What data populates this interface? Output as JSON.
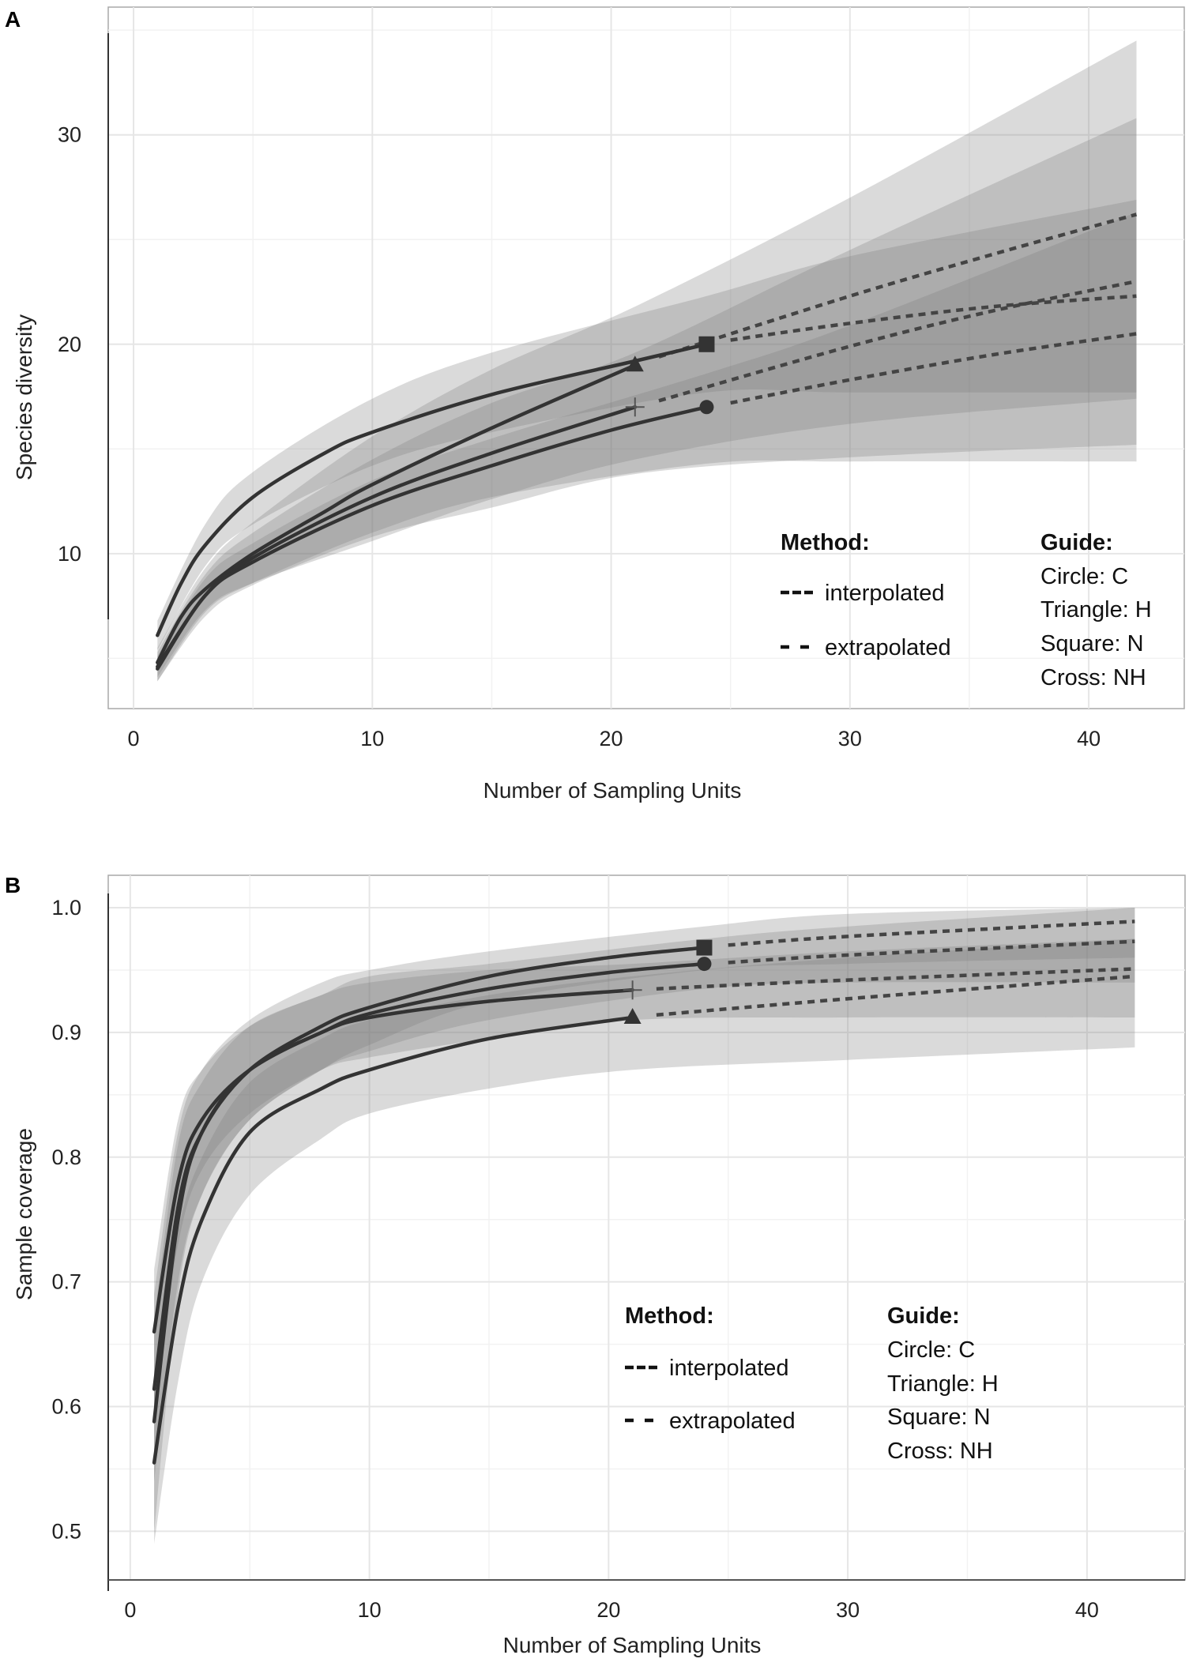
{
  "chart_data": [
    {
      "type": "line",
      "title": "A",
      "xlabel": "Number of Sampling Units",
      "ylabel": "Species diversity",
      "xlim": [
        -1.06,
        44.0
      ],
      "ylim": [
        2.6,
        36.1
      ],
      "xticks": [
        0,
        10,
        20,
        30,
        40
      ],
      "xtick_labels": [
        "0",
        "10",
        "20",
        "30",
        "40"
      ],
      "yticks": [
        10,
        20,
        30
      ],
      "ytick_labels": [
        "10",
        "20",
        "30"
      ],
      "minor_xticks": [
        5,
        15,
        25,
        35
      ],
      "minor_yticks": [
        5,
        15,
        25,
        35
      ],
      "grid": true,
      "legend": {
        "placement": "bottom-right",
        "method_title": "Method:",
        "interpolated": "interpolated",
        "extrapolated": "extrapolated",
        "guide_title": "Guide:",
        "guide_items": [
          "Circle: C",
          "Triangle: H",
          "Square: N",
          "Cross: NH"
        ]
      },
      "series": [
        {
          "name": "H",
          "marker": "triangle",
          "interpolated": {
            "x": [
              1,
              2,
              3,
              5,
              8,
              10,
              15,
              21
            ],
            "y": [
              4.8,
              7.0,
              8.3,
              10.0,
              12.0,
              13.3,
              16.0,
              19.0
            ]
          },
          "extrapolated": {
            "x": [
              22,
              30,
              36,
              42
            ],
            "y": [
              19.4,
              22.3,
              24.3,
              26.2
            ]
          },
          "ci": {
            "x": [
              1,
              3,
              5,
              10,
              15,
              21,
              30,
              42
            ],
            "lower": [
              4.1,
              7.3,
              8.6,
              10.6,
              12.6,
              14.5,
              16.2,
              17.4
            ],
            "upper": [
              5.5,
              9.3,
              11.5,
              15.6,
              18.8,
              21.8,
              27.0,
              34.5
            ]
          }
        },
        {
          "name": "NH",
          "marker": "cross",
          "interpolated": {
            "x": [
              1,
              3,
              5,
              10,
              15,
              21
            ],
            "y": [
              4.6,
              8.0,
              9.8,
              12.7,
              14.8,
              17.0
            ]
          },
          "extrapolated": {
            "x": [
              22,
              30,
              36,
              42
            ],
            "y": [
              17.3,
              19.9,
              21.6,
              23.0
            ]
          },
          "ci": {
            "x": [
              1,
              3,
              5,
              10,
              15,
              21,
              30,
              42
            ],
            "lower": [
              3.9,
              7.0,
              8.5,
              10.8,
              12.2,
              13.8,
              14.6,
              15.2
            ],
            "upper": [
              5.3,
              9.0,
              11.0,
              14.5,
              17.2,
              19.6,
              24.5,
              30.8
            ]
          }
        },
        {
          "name": "N",
          "marker": "square",
          "interpolated": {
            "x": [
              1,
              2,
              3,
              5,
              8,
              10,
              15,
              21,
              24
            ],
            "y": [
              6.1,
              8.6,
              10.4,
              12.7,
              14.8,
              15.8,
              17.6,
              19.2,
              20.0
            ]
          },
          "extrapolated": {
            "x": [
              25,
              30,
              36,
              42
            ],
            "y": [
              20.2,
              21.0,
              21.8,
              22.3
            ]
          },
          "ci": {
            "x": [
              1,
              3,
              5,
              10,
              15,
              24,
              30,
              42
            ],
            "lower": [
              5.4,
              9.4,
              11.4,
              14.2,
              15.8,
              17.7,
              17.7,
              17.7
            ],
            "upper": [
              6.8,
              11.4,
              13.9,
              17.4,
              19.6,
              22.3,
              24.2,
              26.9
            ]
          }
        },
        {
          "name": "C",
          "marker": "circle",
          "interpolated": {
            "x": [
              1,
              3,
              5,
              10,
              15,
              20,
              24
            ],
            "y": [
              4.5,
              8.0,
              9.6,
              12.3,
              14.2,
              15.9,
              17.0
            ]
          },
          "extrapolated": {
            "x": [
              25,
              30,
              36,
              42
            ],
            "y": [
              17.2,
              18.3,
              19.5,
              20.5
            ]
          },
          "ci": {
            "x": [
              1,
              3,
              5,
              10,
              15,
              24,
              30,
              42
            ],
            "lower": [
              3.9,
              7.2,
              8.6,
              11.0,
              12.7,
              14.3,
              14.4,
              14.4
            ],
            "upper": [
              5.1,
              8.8,
              10.5,
              13.5,
              15.5,
              18.6,
              20.9,
              26.3
            ]
          }
        }
      ]
    },
    {
      "type": "line",
      "title": "B",
      "xlabel": "Number of Sampling Units",
      "ylabel": "Sample coverage",
      "xlim": [
        -0.92,
        44.1
      ],
      "ylim": [
        0.461,
        1.026
      ],
      "xticks": [
        0,
        10,
        20,
        30,
        40
      ],
      "xtick_labels": [
        "0",
        "10",
        "20",
        "30",
        "40"
      ],
      "yticks": [
        0.5,
        0.6,
        0.7,
        0.8,
        0.9,
        1.0
      ],
      "ytick_labels": [
        "0.5",
        "0.6",
        "0.7",
        "0.8",
        "0.9",
        "1.0"
      ],
      "minor_xticks": [
        5,
        15,
        25,
        35
      ],
      "minor_yticks": [
        0.55,
        0.65,
        0.75,
        0.85,
        0.95
      ],
      "grid": true,
      "legend": {
        "placement": "center-right",
        "method_title": "Method:",
        "interpolated": "interpolated",
        "extrapolated": "extrapolated",
        "guide_title": "Guide:",
        "guide_items": [
          "Circle: C",
          "Triangle: H",
          "Square: N",
          "Cross: NH"
        ]
      },
      "series": [
        {
          "name": "H",
          "marker": "triangle",
          "interpolated": {
            "x": [
              1,
              2,
              3,
              5,
              8,
              10,
              15,
              21
            ],
            "y": [
              0.555,
              0.68,
              0.75,
              0.82,
              0.855,
              0.87,
              0.895,
              0.912
            ]
          },
          "extrapolated": {
            "x": [
              22,
              30,
              42
            ],
            "y": [
              0.914,
              0.927,
              0.945
            ]
          },
          "ci": {
            "x": [
              1,
              2,
              3,
              5,
              8,
              10,
              15,
              21,
              30,
              42
            ],
            "lower": [
              0.49,
              0.62,
              0.7,
              0.77,
              0.815,
              0.835,
              0.855,
              0.87,
              0.878,
              0.888
            ],
            "upper": [
              0.62,
              0.74,
              0.8,
              0.86,
              0.895,
              0.91,
              0.93,
              0.945,
              0.96,
              0.975
            ]
          }
        },
        {
          "name": "NH",
          "marker": "cross",
          "interpolated": {
            "x": [
              1,
              2,
              3,
              5,
              8,
              10,
              15,
              21
            ],
            "y": [
              0.66,
              0.78,
              0.83,
              0.87,
              0.9,
              0.912,
              0.925,
              0.934
            ]
          },
          "extrapolated": {
            "x": [
              22,
              30,
              42
            ],
            "y": [
              0.935,
              0.942,
              0.951
            ]
          },
          "ci": {
            "x": [
              1,
              2,
              3,
              5,
              8,
              10,
              15,
              21,
              30,
              42
            ],
            "lower": [
              0.6,
              0.73,
              0.79,
              0.835,
              0.87,
              0.88,
              0.895,
              0.91,
              0.912,
              0.912
            ],
            "upper": [
              0.71,
              0.83,
              0.87,
              0.905,
              0.93,
              0.94,
              0.95,
              0.955,
              0.965,
              0.975
            ]
          }
        },
        {
          "name": "N",
          "marker": "square",
          "interpolated": {
            "x": [
              1,
              2,
              3,
              5,
              8,
              10,
              15,
              20,
              24
            ],
            "y": [
              0.614,
              0.76,
              0.82,
              0.87,
              0.905,
              0.92,
              0.945,
              0.96,
              0.968
            ]
          },
          "extrapolated": {
            "x": [
              25,
              30,
              42
            ],
            "y": [
              0.97,
              0.977,
              0.989
            ]
          },
          "ci": {
            "x": [
              1,
              2,
              3,
              5,
              8,
              10,
              15,
              24,
              30,
              42
            ],
            "lower": [
              0.54,
              0.7,
              0.77,
              0.83,
              0.87,
              0.89,
              0.925,
              0.95,
              0.955,
              0.96
            ],
            "upper": [
              0.69,
              0.82,
              0.87,
              0.91,
              0.94,
              0.95,
              0.965,
              0.985,
              0.995,
              1.0
            ]
          }
        },
        {
          "name": "C",
          "marker": "circle",
          "interpolated": {
            "x": [
              1,
              2,
              3,
              5,
              8,
              10,
              15,
              20,
              24
            ],
            "y": [
              0.588,
              0.75,
              0.82,
              0.87,
              0.9,
              0.915,
              0.935,
              0.948,
              0.955
            ]
          },
          "extrapolated": {
            "x": [
              25,
              30,
              42
            ],
            "y": [
              0.956,
              0.962,
              0.973
            ]
          },
          "ci": {
            "x": [
              1,
              2,
              3,
              5,
              8,
              10,
              15,
              24,
              30,
              42
            ],
            "lower": [
              0.5,
              0.69,
              0.77,
              0.83,
              0.87,
              0.885,
              0.91,
              0.935,
              0.94,
              0.94
            ],
            "upper": [
              0.67,
              0.81,
              0.86,
              0.905,
              0.93,
              0.945,
              0.955,
              0.975,
              0.985,
              1.0
            ]
          }
        }
      ]
    }
  ]
}
